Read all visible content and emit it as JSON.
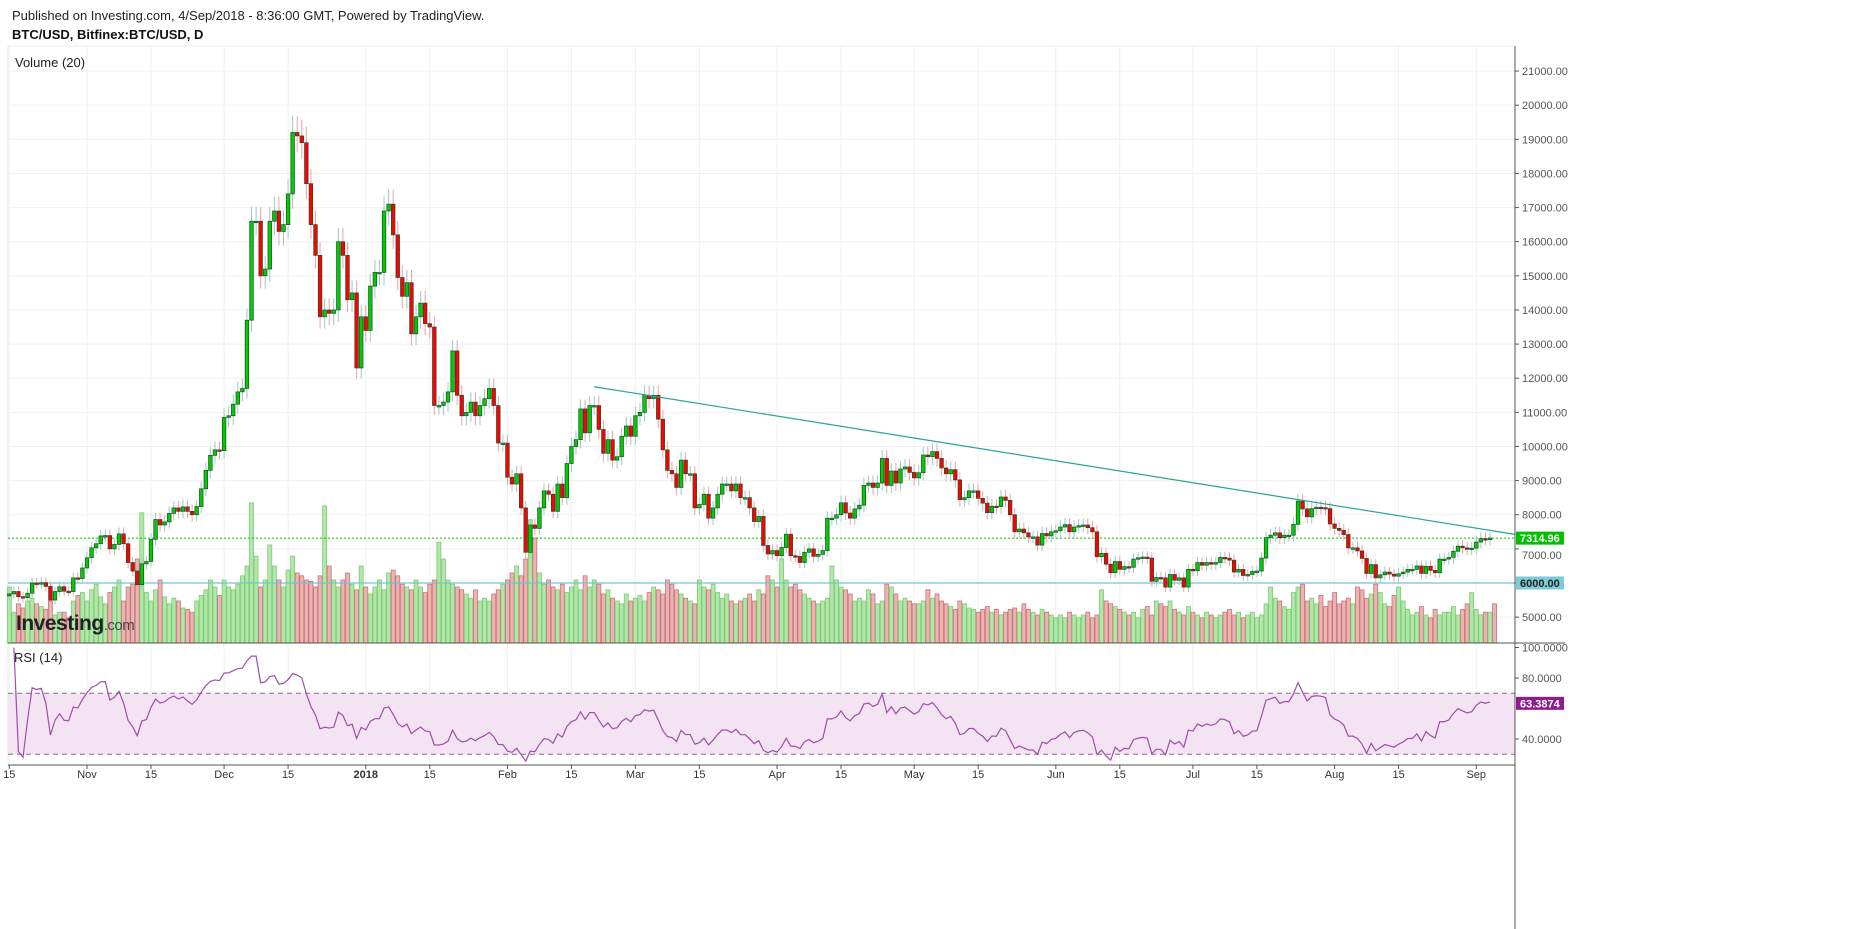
{
  "header": {
    "published": "Published on Investing.com, 4/Sep/2018 - 8:36:00 GMT, Powered by TradingView.",
    "symbol": "BTC/USD, Bitfinex:BTC/USD, D"
  },
  "logo": {
    "brand": "Investing",
    "suffix": ".com"
  },
  "colors": {
    "up": "#00cc00",
    "down": "#ff0000",
    "candle_border": "#1e4a2c",
    "wick_up": "#9cc8cc",
    "wick_down": "#f2a0aa",
    "vol_up": "#b3e6ab",
    "vol_down": "#e8b4b4",
    "trendline": "#2aa397",
    "support": "#6cc6d6",
    "last_price": "#00c000",
    "rsi_line": "#a04ea8",
    "rsi_band": "#f4e3f3",
    "last_rsi": "#8e1e8e"
  },
  "chart_data": [
    {
      "type": "candlestick",
      "title": "BTC/USD, Bitfinex:BTC/USD, D",
      "start_date": "2017-10-15",
      "end_date": "2018-09-04",
      "closes_note": "daily closes; open = prior close",
      "closes": [
        5680,
        5750,
        5600,
        5570,
        5700,
        6000,
        5990,
        6010,
        5900,
        5500,
        5750,
        5890,
        5760,
        5750,
        6150,
        6130,
        6440,
        6740,
        7030,
        7150,
        7380,
        7390,
        7000,
        7130,
        7440,
        7150,
        6600,
        6350,
        5950,
        6560,
        6630,
        7280,
        7860,
        7700,
        7790,
        8040,
        8200,
        8100,
        8230,
        8100,
        8000,
        8240,
        8760,
        9300,
        9740,
        9900,
        9880,
        10850,
        10900,
        11240,
        11600,
        11700,
        13700,
        16600,
        16600,
        15000,
        15200,
        16600,
        16900,
        16300,
        16500,
        17400,
        19200,
        19100,
        18900,
        17700,
        16500,
        15600,
        13800,
        14000,
        13900,
        14000,
        16000,
        15600,
        14300,
        14500,
        12300,
        13800,
        13400,
        14700,
        15100,
        15100,
        16900,
        17100,
        16200,
        14950,
        14400,
        14800,
        13300,
        13800,
        14200,
        13600,
        13500,
        11200,
        11200,
        11300,
        11600,
        12800,
        11500,
        10900,
        11000,
        11300,
        10900,
        11200,
        11400,
        11700,
        11200,
        10100,
        10100,
        9100,
        8900,
        9200,
        8200,
        6900,
        7700,
        7600,
        8200,
        8700,
        8600,
        8100,
        8900,
        8500,
        9500,
        10000,
        10200,
        11100,
        10400,
        11200,
        11200,
        10500,
        9800,
        10200,
        9600,
        9700,
        10300,
        10600,
        10300,
        10900,
        11000,
        11500,
        11400,
        11500,
        10800,
        9900,
        9300,
        9200,
        8800,
        9600,
        9200,
        9200,
        8200,
        8300,
        8600,
        7900,
        8200,
        8600,
        8900,
        8900,
        8700,
        8900,
        8500,
        8500,
        8200,
        7800,
        7950,
        7100,
        6850,
        6950,
        6800,
        7040,
        7430,
        6800,
        6780,
        6600,
        6900,
        7000,
        6780,
        6840,
        6950,
        7900,
        7900,
        8000,
        8350,
        8050,
        7900,
        8170,
        8280,
        8860,
        8930,
        8800,
        8930,
        9650,
        8860,
        9280,
        8930,
        9340,
        9400,
        9240,
        9080,
        9230,
        9750,
        9700,
        9850,
        9650,
        9370,
        9200,
        9320,
        9020,
        8440,
        8500,
        8700,
        8700,
        8480,
        8340,
        8060,
        8250,
        8240,
        8520,
        8420,
        8000,
        7500,
        7580,
        7470,
        7350,
        7350,
        7110,
        7450,
        7380,
        7500,
        7530,
        7640,
        7710,
        7500,
        7640,
        7680,
        7700,
        7620,
        7500,
        6770,
        6870,
        6550,
        6300,
        6630,
        6400,
        6480,
        6460,
        6700,
        6740,
        6760,
        6730,
        6050,
        6160,
        6150,
        5880,
        6250,
        6080,
        6150,
        5880,
        6400,
        6360,
        6600,
        6520,
        6600,
        6550,
        6600,
        6750,
        6730,
        6670,
        6320,
        6400,
        6220,
        6250,
        6340,
        6350,
        6730,
        7330,
        7400,
        7470,
        7330,
        7400,
        7400,
        7720,
        8400,
        8170,
        7940,
        8180,
        8220,
        8210,
        8180,
        7730,
        7600,
        7540,
        7420,
        7030,
        7030,
        6940,
        6720,
        6280,
        6540,
        6150,
        6240,
        6320,
        6260,
        6200,
        6270,
        6320,
        6400,
        6400,
        6500,
        6280,
        6490,
        6370,
        6300,
        6700,
        6700,
        6750,
        6930,
        7080,
        7030,
        6990,
        7020,
        7200,
        7300,
        7280,
        7314.96
      ],
      "volume_label": "Volume (20)",
      "volume_relative": [
        40,
        22,
        28,
        25,
        30,
        32,
        28,
        26,
        24,
        30,
        20,
        22,
        22,
        18,
        30,
        34,
        36,
        30,
        38,
        42,
        33,
        28,
        36,
        40,
        45,
        30,
        40,
        42,
        60,
        93,
        36,
        30,
        38,
        45,
        33,
        28,
        32,
        30,
        25,
        24,
        22,
        30,
        34,
        38,
        45,
        40,
        34,
        45,
        40,
        38,
        42,
        48,
        55,
        100,
        62,
        40,
        45,
        70,
        55,
        45,
        40,
        52,
        62,
        50,
        48,
        45,
        44,
        40,
        48,
        98,
        55,
        45,
        40,
        45,
        50,
        42,
        38,
        55,
        40,
        35,
        40,
        45,
        38,
        50,
        52,
        48,
        42,
        40,
        38,
        45,
        40,
        36,
        42,
        45,
        72,
        60,
        45,
        42,
        40,
        38,
        35,
        32,
        38,
        30,
        32,
        30,
        35,
        38,
        42,
        45,
        50,
        55,
        48,
        60,
        88,
        75,
        50,
        42,
        45,
        40,
        38,
        42,
        36,
        40,
        45,
        38,
        48,
        40,
        45,
        42,
        35,
        38,
        32,
        30,
        28,
        35,
        30,
        32,
        34,
        30,
        36,
        40,
        38,
        35,
        45,
        42,
        38,
        35,
        32,
        30,
        28,
        45,
        40,
        38,
        42,
        36,
        32,
        35,
        30,
        28,
        30,
        32,
        35,
        30,
        38,
        35,
        48,
        45,
        40,
        60,
        45,
        40,
        42,
        38,
        35,
        32,
        30,
        28,
        30,
        32,
        55,
        45,
        40,
        38,
        35,
        30,
        32,
        30,
        38,
        35,
        28,
        30,
        42,
        40,
        35,
        30,
        32,
        30,
        28,
        28,
        30,
        38,
        32,
        35,
        30,
        28,
        26,
        24,
        30,
        28,
        25,
        24,
        22,
        24,
        26,
        22,
        24,
        20,
        22,
        24,
        25,
        22,
        28,
        24,
        22,
        20,
        24,
        22,
        20,
        18,
        20,
        18,
        22,
        20,
        18,
        20,
        22,
        18,
        20,
        38,
        30,
        28,
        26,
        24,
        22,
        20,
        22,
        18,
        24,
        26,
        20,
        30,
        28,
        26,
        30,
        24,
        22,
        20,
        26,
        22,
        20,
        18,
        22,
        20,
        18,
        20,
        22,
        24,
        20,
        22,
        18,
        20,
        22,
        18,
        20,
        28,
        40,
        32,
        30,
        26,
        24,
        36,
        40,
        42,
        30,
        32,
        28,
        34,
        26,
        30,
        36,
        28,
        30,
        32,
        28,
        40,
        38,
        32,
        35,
        42,
        36,
        28,
        26,
        34,
        40,
        30,
        24,
        20,
        22,
        26,
        20,
        18,
        24,
        20,
        22,
        22,
        26,
        20,
        24,
        28,
        36,
        24,
        20,
        22,
        22,
        28
      ],
      "price_axis": {
        "ticks": [
          5000,
          6000,
          7000,
          8000,
          9000,
          10000,
          11000,
          12000,
          13000,
          14000,
          15000,
          16000,
          17000,
          18000,
          19000,
          20000,
          21000
        ],
        "decimals": 2
      },
      "x_ticks": [
        {
          "label": "15",
          "date": "2017-10-15"
        },
        {
          "label": "Nov",
          "date": "2017-11-01"
        },
        {
          "label": "15",
          "date": "2017-11-15"
        },
        {
          "label": "Dec",
          "date": "2017-12-01"
        },
        {
          "label": "15",
          "date": "2017-12-15"
        },
        {
          "label": "2018",
          "date": "2018-01-01"
        },
        {
          "label": "15",
          "date": "2018-01-15"
        },
        {
          "label": "Feb",
          "date": "2018-02-01"
        },
        {
          "label": "15",
          "date": "2018-02-15"
        },
        {
          "label": "Mar",
          "date": "2018-03-01"
        },
        {
          "label": "15",
          "date": "2018-03-15"
        },
        {
          "label": "Apr",
          "date": "2018-04-01"
        },
        {
          "label": "15",
          "date": "2018-04-15"
        },
        {
          "label": "May",
          "date": "2018-05-01"
        },
        {
          "label": "15",
          "date": "2018-05-15"
        },
        {
          "label": "Jun",
          "date": "2018-06-01"
        },
        {
          "label": "15",
          "date": "2018-06-15"
        },
        {
          "label": "Jul",
          "date": "2018-07-01"
        },
        {
          "label": "15",
          "date": "2018-07-15"
        },
        {
          "label": "Aug",
          "date": "2018-08-01"
        },
        {
          "label": "15",
          "date": "2018-08-15"
        },
        {
          "label": "Sep",
          "date": "2018-09-01"
        }
      ],
      "last_price_label": "7314.96",
      "support_level": {
        "price": 6000,
        "label": "6000.00"
      },
      "trendline": {
        "start": {
          "date": "2018-02-20",
          "price": 11750
        },
        "end": {
          "date": "2018-09-09",
          "price": 7435
        }
      }
    },
    {
      "type": "line",
      "title": "RSI (14)",
      "period": 14,
      "ticks": [
        {
          "value": 100,
          "label": "100.0000"
        },
        {
          "value": 80,
          "label": "80.0000"
        },
        {
          "value": 40,
          "label": "40.0000"
        }
      ],
      "bands": [
        30,
        70
      ],
      "last_value_label": "63.3874"
    }
  ]
}
